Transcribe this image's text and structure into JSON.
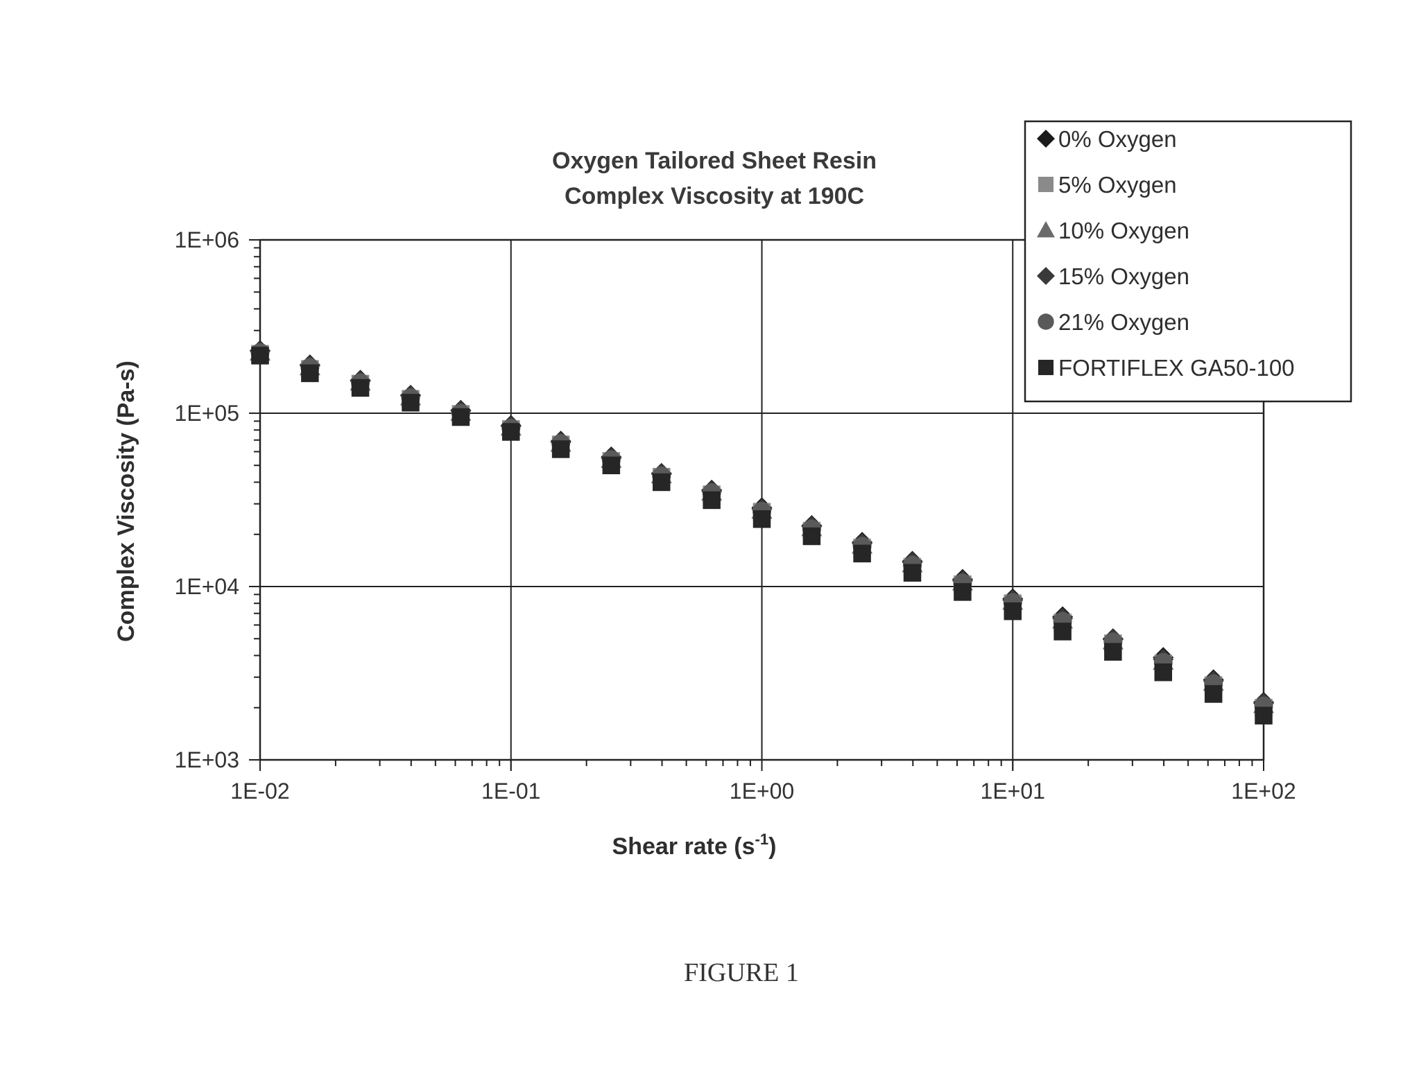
{
  "chart_data": {
    "type": "scatter",
    "title": [
      "Oxygen Tailored Sheet Resin",
      "Complex Viscosity at 190C"
    ],
    "xlabel": "Shear rate (s",
    "xlabel_sup": "-1",
    "xlabel_close": ")",
    "ylabel": "Complex Viscosity (Pa-s)",
    "xscale": "log",
    "yscale": "log",
    "xlim": [
      0.01,
      100
    ],
    "ylim": [
      1000,
      1000000
    ],
    "xticks": [
      "1E-02",
      "1E-01",
      "1E+00",
      "1E+01",
      "1E+02"
    ],
    "yticks": [
      "1E+03",
      "1E+04",
      "1E+05",
      "1E+06"
    ],
    "grid": true,
    "legend_position": "top-right",
    "x": [
      0.01,
      0.0158,
      0.0251,
      0.0398,
      0.0631,
      0.1,
      0.158,
      0.251,
      0.398,
      0.631,
      1,
      1.58,
      2.51,
      3.98,
      6.31,
      10,
      15.8,
      25.1,
      39.8,
      63.1,
      100
    ],
    "series": [
      {
        "name": "0% Oxygen",
        "marker": "diamond",
        "color": "#1a1a1a",
        "values": [
          230000,
          190000,
          155000,
          127000,
          104000,
          85000,
          69000,
          56000,
          45000,
          36000,
          28500,
          22500,
          18000,
          14000,
          11000,
          8500,
          6700,
          5000,
          3900,
          2900,
          2150
        ]
      },
      {
        "name": "5% Oxygen",
        "marker": "square",
        "color": "#8a8a8a",
        "values": [
          220000,
          180000,
          148000,
          121000,
          99000,
          81000,
          66000,
          53000,
          43000,
          34000,
          27000,
          21000,
          16800,
          13000,
          10300,
          8000,
          6200,
          4700,
          3600,
          2700,
          2000
        ]
      },
      {
        "name": "10% Oxygen",
        "marker": "triangle",
        "color": "#6a6a6a",
        "values": [
          225000,
          185000,
          151000,
          124000,
          101000,
          83000,
          67000,
          54000,
          44000,
          35000,
          27500,
          21800,
          17300,
          13500,
          10600,
          8200,
          6400,
          4850,
          3700,
          2800,
          2080
        ]
      },
      {
        "name": "15% Oxygen",
        "marker": "diamond",
        "color": "#3a3a3a",
        "values": [
          228000,
          188000,
          153000,
          126000,
          103000,
          84000,
          68000,
          55000,
          44500,
          35500,
          28000,
          22200,
          17700,
          13800,
          10800,
          8350,
          6550,
          4950,
          3800,
          2850,
          2120
        ]
      },
      {
        "name": "21% Oxygen",
        "marker": "circle",
        "color": "#5a5a5a",
        "values": [
          224000,
          184000,
          150000,
          123000,
          100000,
          82000,
          67000,
          54000,
          43500,
          34800,
          27200,
          21500,
          17100,
          13300,
          10500,
          8100,
          6300,
          4800,
          3650,
          2750,
          2050
        ]
      },
      {
        "name": "FORTIFLEX GA50-100",
        "marker": "square",
        "color": "#262626",
        "values": [
          215000,
          170000,
          140000,
          115000,
          95000,
          78000,
          62000,
          50000,
          40000,
          31500,
          24500,
          19500,
          15500,
          12000,
          9300,
          7200,
          5500,
          4200,
          3200,
          2400,
          1800
        ]
      }
    ]
  },
  "caption": "FIGURE 1"
}
